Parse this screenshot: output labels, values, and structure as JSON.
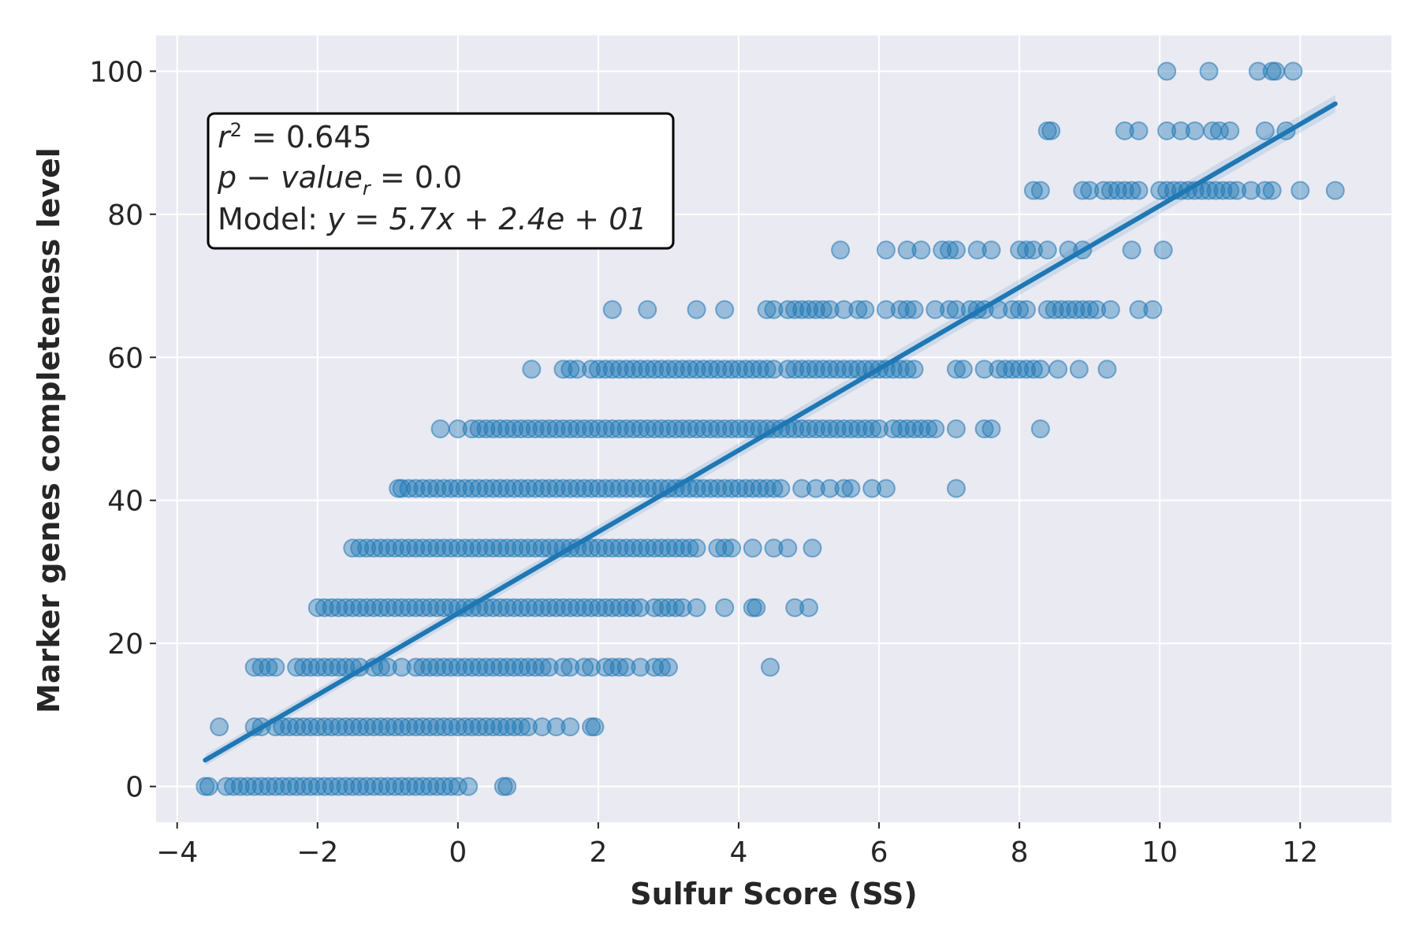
{
  "chart_data": {
    "type": "scatter",
    "xlabel": "Sulfur Score (SS)",
    "ylabel": "Marker genes completeness level",
    "xlim": [
      -4.3,
      13.3
    ],
    "ylim": [
      -5,
      105
    ],
    "xticks": [
      -4,
      -2,
      0,
      2,
      4,
      6,
      8,
      10,
      12
    ],
    "xtick_labels": [
      "−4",
      "−2",
      "0",
      "2",
      "4",
      "6",
      "8",
      "10",
      "12"
    ],
    "yticks": [
      0,
      20,
      40,
      60,
      80,
      100
    ],
    "ytick_labels": [
      "0",
      "20",
      "40",
      "60",
      "80",
      "100"
    ],
    "grid": true,
    "background": "#eaeaf2",
    "point_color": "#1f77b4",
    "point_alpha": 0.4,
    "annotation": {
      "r2_label": "r",
      "r2_sup": "2",
      "r2_value": " = 0.645",
      "p_label": "p − value",
      "p_sub": "r",
      "p_value": " = 0.0",
      "model_prefix": "Model: ",
      "model_formula": "y = 5.7x + 2.4e + 01"
    },
    "regression": {
      "slope": 5.7,
      "intercept": 24.2,
      "x_range": [
        -3.6,
        12.5
      ]
    },
    "series": [
      {
        "y": 0,
        "x": [
          -3.6,
          -3.55,
          -3.3,
          -3.2,
          -3.1,
          -3.0,
          -2.9,
          -2.8,
          -2.7,
          -2.6,
          -2.5,
          -2.4,
          -2.3,
          -2.2,
          -2.1,
          -2.0,
          -1.9,
          -1.8,
          -1.7,
          -1.6,
          -1.5,
          -1.4,
          -1.3,
          -1.2,
          -1.1,
          -1.0,
          -0.9,
          -0.8,
          -0.7,
          -0.6,
          -0.5,
          -0.4,
          -0.3,
          -0.2,
          -0.1,
          0.0,
          0.15,
          0.65,
          0.7
        ]
      },
      {
        "y": 8.33,
        "x": [
          -3.4,
          -2.9,
          -2.8,
          -2.6,
          -2.5,
          -2.4,
          -2.3,
          -2.2,
          -2.1,
          -2.0,
          -1.9,
          -1.8,
          -1.7,
          -1.6,
          -1.5,
          -1.4,
          -1.3,
          -1.2,
          -1.1,
          -1.0,
          -0.9,
          -0.8,
          -0.7,
          -0.6,
          -0.5,
          -0.4,
          -0.3,
          -0.2,
          -0.1,
          0.0,
          0.1,
          0.2,
          0.3,
          0.4,
          0.5,
          0.6,
          0.7,
          0.8,
          0.9,
          1.0,
          1.2,
          1.4,
          1.6,
          1.9,
          1.95
        ]
      },
      {
        "y": 16.67,
        "x": [
          -2.9,
          -2.8,
          -2.7,
          -2.6,
          -2.3,
          -2.2,
          -2.1,
          -2.0,
          -1.9,
          -1.8,
          -1.7,
          -1.6,
          -1.5,
          -1.4,
          -1.2,
          -1.1,
          -1.0,
          -0.8,
          -0.6,
          -0.5,
          -0.4,
          -0.3,
          -0.2,
          -0.1,
          0.0,
          0.1,
          0.2,
          0.3,
          0.4,
          0.5,
          0.6,
          0.7,
          0.8,
          0.9,
          1.0,
          1.1,
          1.2,
          1.3,
          1.5,
          1.6,
          1.8,
          1.9,
          2.1,
          2.2,
          2.3,
          2.4,
          2.6,
          2.8,
          2.9,
          3.0,
          4.45
        ]
      },
      {
        "y": 25,
        "x": [
          -2.0,
          -1.9,
          -1.8,
          -1.7,
          -1.6,
          -1.5,
          -1.4,
          -1.3,
          -1.2,
          -1.1,
          -1.0,
          -0.9,
          -0.8,
          -0.7,
          -0.6,
          -0.5,
          -0.4,
          -0.3,
          -0.2,
          -0.1,
          0.0,
          0.1,
          0.2,
          0.3,
          0.4,
          0.5,
          0.6,
          0.7,
          0.8,
          0.9,
          1.0,
          1.1,
          1.2,
          1.3,
          1.4,
          1.5,
          1.6,
          1.7,
          1.8,
          1.9,
          2.0,
          2.1,
          2.2,
          2.3,
          2.4,
          2.5,
          2.6,
          2.8,
          2.9,
          3.0,
          3.1,
          3.2,
          3.4,
          3.8,
          4.2,
          4.25,
          4.8,
          5.0
        ]
      },
      {
        "y": 33.33,
        "x": [
          -1.5,
          -1.4,
          -1.3,
          -1.2,
          -1.1,
          -1.0,
          -0.9,
          -0.8,
          -0.7,
          -0.6,
          -0.5,
          -0.4,
          -0.3,
          -0.2,
          -0.1,
          0.0,
          0.1,
          0.2,
          0.3,
          0.4,
          0.5,
          0.6,
          0.7,
          0.8,
          0.9,
          1.0,
          1.1,
          1.2,
          1.3,
          1.4,
          1.5,
          1.6,
          1.7,
          1.8,
          1.9,
          2.0,
          2.1,
          2.2,
          2.3,
          2.4,
          2.5,
          2.6,
          2.7,
          2.8,
          2.9,
          3.0,
          3.1,
          3.2,
          3.3,
          3.4,
          3.7,
          3.8,
          3.9,
          4.2,
          4.5,
          4.7,
          5.05
        ]
      },
      {
        "y": 41.67,
        "x": [
          -0.85,
          -0.8,
          -0.7,
          -0.6,
          -0.5,
          -0.4,
          -0.3,
          -0.2,
          -0.1,
          0.0,
          0.1,
          0.2,
          0.3,
          0.4,
          0.5,
          0.6,
          0.7,
          0.8,
          0.9,
          1.0,
          1.1,
          1.2,
          1.3,
          1.4,
          1.5,
          1.6,
          1.7,
          1.8,
          1.9,
          2.0,
          2.1,
          2.2,
          2.3,
          2.4,
          2.5,
          2.6,
          2.7,
          2.8,
          2.9,
          3.0,
          3.1,
          3.2,
          3.3,
          3.4,
          3.5,
          3.6,
          3.7,
          3.8,
          3.9,
          4.0,
          4.1,
          4.2,
          4.3,
          4.4,
          4.5,
          4.6,
          4.9,
          5.1,
          5.3,
          5.5,
          5.6,
          5.9,
          6.1,
          7.1
        ]
      },
      {
        "y": 50,
        "x": [
          -0.25,
          0.0,
          0.2,
          0.3,
          0.4,
          0.5,
          0.6,
          0.7,
          0.8,
          0.9,
          1.0,
          1.1,
          1.2,
          1.3,
          1.4,
          1.5,
          1.6,
          1.7,
          1.8,
          1.9,
          2.0,
          2.1,
          2.2,
          2.3,
          2.4,
          2.5,
          2.6,
          2.7,
          2.8,
          2.9,
          3.0,
          3.1,
          3.2,
          3.3,
          3.4,
          3.5,
          3.6,
          3.7,
          3.8,
          3.9,
          4.0,
          4.1,
          4.2,
          4.3,
          4.4,
          4.5,
          4.6,
          4.7,
          4.8,
          4.9,
          5.0,
          5.1,
          5.2,
          5.3,
          5.4,
          5.5,
          5.6,
          5.7,
          5.8,
          5.9,
          6.0,
          6.2,
          6.3,
          6.4,
          6.5,
          6.6,
          6.7,
          6.8,
          7.1,
          7.5,
          7.6,
          8.3
        ]
      },
      {
        "y": 58.33,
        "x": [
          1.05,
          1.5,
          1.6,
          1.7,
          1.9,
          2.0,
          2.1,
          2.2,
          2.3,
          2.4,
          2.5,
          2.6,
          2.7,
          2.8,
          2.9,
          3.0,
          3.1,
          3.2,
          3.3,
          3.4,
          3.5,
          3.6,
          3.7,
          3.8,
          3.9,
          4.0,
          4.1,
          4.2,
          4.3,
          4.4,
          4.5,
          4.7,
          4.8,
          4.9,
          5.0,
          5.1,
          5.2,
          5.3,
          5.4,
          5.5,
          5.6,
          5.7,
          5.8,
          5.9,
          6.0,
          6.1,
          6.2,
          6.3,
          6.4,
          6.5,
          7.1,
          7.2,
          7.5,
          7.7,
          7.8,
          7.9,
          8.0,
          8.1,
          8.2,
          8.3,
          8.55,
          8.85,
          9.25
        ]
      },
      {
        "y": 66.67,
        "x": [
          2.2,
          2.7,
          3.4,
          3.8,
          4.4,
          4.5,
          4.7,
          4.8,
          4.9,
          5.0,
          5.1,
          5.2,
          5.3,
          5.5,
          5.7,
          5.8,
          6.1,
          6.3,
          6.4,
          6.5,
          6.8,
          7.0,
          7.1,
          7.3,
          7.4,
          7.5,
          7.7,
          7.9,
          8.0,
          8.1,
          8.4,
          8.5,
          8.6,
          8.7,
          8.8,
          8.9,
          9.0,
          9.1,
          9.3,
          9.7,
          9.9
        ]
      },
      {
        "y": 75,
        "x": [
          5.45,
          6.1,
          6.4,
          6.6,
          6.9,
          7.0,
          7.1,
          7.4,
          7.6,
          8.0,
          8.1,
          8.2,
          8.4,
          8.7,
          8.9,
          9.6,
          10.05
        ]
      },
      {
        "y": 83.33,
        "x": [
          8.2,
          8.3,
          8.9,
          9.0,
          9.2,
          9.3,
          9.4,
          9.5,
          9.6,
          9.7,
          10.0,
          10.1,
          10.2,
          10.3,
          10.4,
          10.5,
          10.6,
          10.7,
          10.8,
          10.9,
          11.0,
          11.1,
          11.3,
          11.5,
          11.6,
          12.0,
          12.5
        ]
      },
      {
        "y": 91.67,
        "x": [
          8.4,
          8.45,
          9.5,
          9.7,
          10.1,
          10.3,
          10.5,
          10.75,
          10.85,
          11.0,
          11.5,
          11.8
        ]
      },
      {
        "y": 100,
        "x": [
          10.1,
          10.7,
          11.4,
          11.6,
          11.65,
          11.9
        ]
      }
    ]
  }
}
